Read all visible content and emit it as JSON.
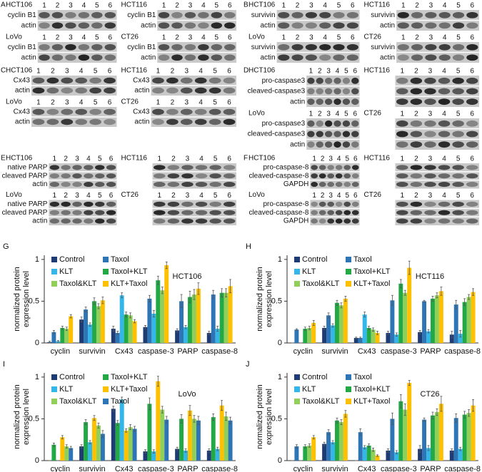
{
  "lanes": [
    1,
    2,
    3,
    4,
    5,
    6
  ],
  "blots": [
    {
      "letter": "A",
      "cells": [
        {
          "name": "HCT106",
          "rows": [
            "cyclin B1",
            "actin"
          ]
        },
        {
          "name": "HCT116",
          "rows": [
            "cyclin B1",
            "actin"
          ]
        },
        {
          "name": "LoVo",
          "rows": [
            "cyclin B1",
            "actin"
          ]
        },
        {
          "name": "CT26",
          "rows": [
            "cyclin B1",
            "actin"
          ]
        }
      ]
    },
    {
      "letter": "B",
      "cells": [
        {
          "name": "HCT106",
          "rows": [
            "survivin",
            "actin"
          ]
        },
        {
          "name": "HCT116",
          "rows": [
            "survivin",
            "actin"
          ]
        },
        {
          "name": "LoVo",
          "rows": [
            "survivin",
            "actin"
          ]
        },
        {
          "name": "CT26",
          "rows": [
            "survivin",
            "actin"
          ]
        }
      ]
    },
    {
      "letter": "C",
      "cells": [
        {
          "name": "HCT106",
          "rows": [
            "Cx43",
            "actin"
          ]
        },
        {
          "name": "HCT116",
          "rows": [
            "Cx43",
            "actin"
          ]
        },
        {
          "name": "LoVo",
          "rows": [
            "Cx43",
            "actin"
          ]
        },
        {
          "name": "CT26",
          "rows": [
            "Cx43",
            "actin"
          ]
        }
      ]
    },
    {
      "letter": "D",
      "cells": [
        {
          "name": "HCT106",
          "rows": [
            "pro-caspase3",
            "cleaved-caspase3",
            "actin"
          ]
        },
        {
          "name": "HCT116",
          "rows": []
        },
        {
          "name": "LoVo",
          "rows": [
            "pro-caspase3",
            "cleaved-caspase3",
            "actin"
          ]
        },
        {
          "name": "CT26",
          "rows": []
        }
      ]
    },
    {
      "letter": "E",
      "cells": [
        {
          "name": "HCT106",
          "rows": [
            "native PARP",
            "cleaved PARP",
            "actin"
          ]
        },
        {
          "name": "HCT116",
          "rows": []
        },
        {
          "name": "LoVo",
          "rows": [
            "native PARP",
            "cleaved PARP",
            "actin"
          ]
        },
        {
          "name": "CT26",
          "rows": []
        }
      ]
    },
    {
      "letter": "F",
      "cells": [
        {
          "name": "HCT106",
          "rows": [
            "pro-caspase-8",
            "cleaved-caspase-8",
            "GAPDH"
          ]
        },
        {
          "name": "HCT116",
          "rows": []
        },
        {
          "name": "LoVo",
          "rows": [
            "pro-caspase-8",
            "cleaved-caspase-8",
            "GAPDH"
          ]
        },
        {
          "name": "CT26",
          "rows": []
        }
      ]
    }
  ],
  "chart_data": [
    {
      "type": "bar",
      "letter": "G",
      "title": "HCT106",
      "ylabel": [
        "normalized protein",
        "expression level"
      ],
      "categories": [
        "cyclin",
        "survivin",
        "Cx43",
        "caspase-3",
        "PARP",
        "caspase-8"
      ],
      "ylim": [
        0,
        1.05
      ],
      "yticks": [
        0,
        0.5,
        1
      ],
      "series": [
        {
          "name": "Control",
          "color": "#1f3b73",
          "values": [
            0.01,
            0.28,
            0.17,
            0.19,
            0.15,
            0.12
          ],
          "errors": [
            0.01,
            0.03,
            0.03,
            0.02,
            0.02,
            0.02
          ]
        },
        {
          "name": "Taxol",
          "color": "#2e75b6",
          "values": [
            0.13,
            0.4,
            0.12,
            0.53,
            0.5,
            0.58
          ],
          "errors": [
            0.02,
            0.03,
            0.02,
            0.04,
            0.08,
            0.05
          ]
        },
        {
          "name": "KLT",
          "color": "#35b6e8",
          "values": [
            0.02,
            0.22,
            0.57,
            0.35,
            0.19,
            0.17
          ],
          "errors": [
            0.01,
            0.02,
            0.03,
            0.04,
            0.02,
            0.03
          ]
        },
        {
          "name": "Taxol+KLT",
          "color": "#22a845",
          "values": [
            0.18,
            0.5,
            0.34,
            0.75,
            0.55,
            0.6
          ],
          "errors": [
            0.02,
            0.04,
            0.03,
            0.05,
            0.07,
            0.05
          ]
        },
        {
          "name": "Taxol&KLT",
          "color": "#8fcf5a",
          "values": [
            0.17,
            0.44,
            0.33,
            0.63,
            0.58,
            0.6
          ],
          "errors": [
            0.02,
            0.03,
            0.03,
            0.04,
            0.06,
            0.05
          ]
        },
        {
          "name": "KLT+Taxol",
          "color": "#ffc000",
          "values": [
            0.32,
            0.51,
            0.26,
            0.93,
            0.65,
            0.68
          ],
          "errors": [
            0.02,
            0.04,
            0.02,
            0.04,
            0.07,
            0.08
          ]
        }
      ]
    },
    {
      "type": "bar",
      "letter": "H",
      "title": "HCT116",
      "ylabel": [
        "normalized protein",
        "expression level"
      ],
      "categories": [
        "cyclin",
        "survivin",
        "Cx43",
        "caspase-3",
        "PARP",
        "caspase-8"
      ],
      "ylim": [
        0,
        1.05
      ],
      "yticks": [
        0,
        0.5,
        1
      ],
      "series": [
        {
          "name": "Control",
          "color": "#1f3b73",
          "values": [
            0.0,
            0.18,
            0.06,
            0.12,
            0.13,
            0.1
          ],
          "errors": [
            0.0,
            0.02,
            0.01,
            0.02,
            0.02,
            0.04
          ]
        },
        {
          "name": "Taxol",
          "color": "#2e75b6",
          "values": [
            0.16,
            0.33,
            0.06,
            0.51,
            0.5,
            0.46
          ],
          "errors": [
            0.01,
            0.03,
            0.01,
            0.06,
            0.01,
            0.05
          ]
        },
        {
          "name": "KLT",
          "color": "#35b6e8",
          "values": [
            0.0,
            0.21,
            0.34,
            0.1,
            0.14,
            0.11
          ],
          "errors": [
            0.0,
            0.02,
            0.03,
            0.02,
            0.02,
            0.04
          ]
        },
        {
          "name": "Taxol+KLT",
          "color": "#22a845",
          "values": [
            0.17,
            0.48,
            0.18,
            0.71,
            0.53,
            0.49
          ],
          "errors": [
            0.02,
            0.03,
            0.02,
            0.05,
            0.03,
            0.04
          ]
        },
        {
          "name": "Taxol&KLT",
          "color": "#8fcf5a",
          "values": [
            0.18,
            0.45,
            0.16,
            0.6,
            0.57,
            0.55
          ],
          "errors": [
            0.02,
            0.03,
            0.02,
            0.03,
            0.03,
            0.03
          ]
        },
        {
          "name": "KLT+Taxol",
          "color": "#ffc000",
          "values": [
            0.24,
            0.53,
            0.12,
            0.9,
            0.62,
            0.61
          ],
          "errors": [
            0.03,
            0.03,
            0.02,
            0.08,
            0.05,
            0.04
          ]
        }
      ]
    },
    {
      "type": "bar",
      "letter": "I",
      "title": "LoVo",
      "ylabel": [
        "normalized protein",
        "expression level"
      ],
      "categories": [
        "cyclin",
        "survivin",
        "Cx43",
        "caspase-3",
        "PARP",
        "caspase-8"
      ],
      "ylim": [
        0,
        1.05
      ],
      "yticks": [
        0,
        0.5,
        1
      ],
      "series": [
        {
          "name": "Control",
          "color": "#1f3b73",
          "values": [
            0.0,
            0.17,
            0.62,
            0.11,
            0.14,
            0.12
          ],
          "errors": [
            0.0,
            0.02,
            0.03,
            0.02,
            0.02,
            0.02
          ]
        },
        {
          "name": "Taxol+KLT",
          "color": "#22a845",
          "values": [
            0.19,
            0.46,
            0.45,
            0.68,
            0.5,
            0.52
          ],
          "errors": [
            0.02,
            0.03,
            0.03,
            0.07,
            0.05,
            0.04
          ]
        },
        {
          "name": "KLT",
          "color": "#35b6e8",
          "values": [
            0.0,
            0.22,
            0.73,
            0.11,
            0.12,
            0.14
          ],
          "errors": [
            0.0,
            0.02,
            0.03,
            0.02,
            0.02,
            0.02
          ]
        },
        {
          "name": "KLT+Taxol",
          "color": "#ffc000",
          "values": [
            0.28,
            0.51,
            0.36,
            0.95,
            0.6,
            0.66
          ],
          "errors": [
            0.02,
            0.03,
            0.02,
            0.06,
            0.06,
            0.06
          ]
        },
        {
          "name": "Taxol&KLT",
          "color": "#8fcf5a",
          "values": [
            0.17,
            0.42,
            0.4,
            0.61,
            0.5,
            0.53
          ],
          "errors": [
            0.02,
            0.03,
            0.03,
            0.04,
            0.04,
            0.05
          ]
        },
        {
          "name": "Taxol",
          "color": "#2e75b6",
          "values": [
            0.15,
            0.32,
            0.38,
            0.49,
            0.48,
            0.48
          ],
          "errors": [
            0.02,
            0.04,
            0.03,
            0.04,
            0.05,
            0.04
          ]
        }
      ]
    },
    {
      "type": "bar",
      "letter": "J",
      "title": "CT26",
      "ylabel": [
        "normalized protein",
        "expression level"
      ],
      "categories": [
        "cyclin",
        "survivin",
        "Cx43",
        "caspase-3",
        "PARP",
        "caspase-8"
      ],
      "ylim": [
        0,
        1.05
      ],
      "yticks": [
        0,
        0.5,
        1
      ],
      "series": [
        {
          "name": "Control",
          "color": "#1f3b73",
          "values": [
            0.0,
            0.2,
            0.0,
            0.12,
            0.14,
            0.12
          ],
          "errors": [
            0.0,
            0.02,
            0.0,
            0.02,
            0.04,
            0.02
          ]
        },
        {
          "name": "Taxol",
          "color": "#2e75b6",
          "values": [
            0.17,
            0.34,
            0.34,
            0.5,
            0.49,
            0.51
          ],
          "errors": [
            0.02,
            0.03,
            0.04,
            0.07,
            0.02,
            0.05
          ]
        },
        {
          "name": "KLT",
          "color": "#35b6e8",
          "values": [
            0.0,
            0.22,
            0.16,
            0.1,
            0.15,
            0.14
          ],
          "errors": [
            0.0,
            0.02,
            0.02,
            0.02,
            0.03,
            0.02
          ]
        },
        {
          "name": "Taxol+KLT",
          "color": "#22a845",
          "values": [
            0.17,
            0.48,
            0.18,
            0.71,
            0.54,
            0.55
          ],
          "errors": [
            0.02,
            0.03,
            0.02,
            0.08,
            0.04,
            0.04
          ]
        },
        {
          "name": "Taxol&KLT",
          "color": "#8fcf5a",
          "values": [
            0.18,
            0.46,
            0.13,
            0.61,
            0.58,
            0.57
          ],
          "errors": [
            0.02,
            0.03,
            0.02,
            0.07,
            0.04,
            0.04
          ]
        },
        {
          "name": "KLT+Taxol",
          "color": "#ffc000",
          "values": [
            0.28,
            0.56,
            0.06,
            0.93,
            0.68,
            0.66
          ],
          "errors": [
            0.02,
            0.04,
            0.01,
            0.03,
            0.09,
            0.07
          ]
        }
      ]
    }
  ]
}
